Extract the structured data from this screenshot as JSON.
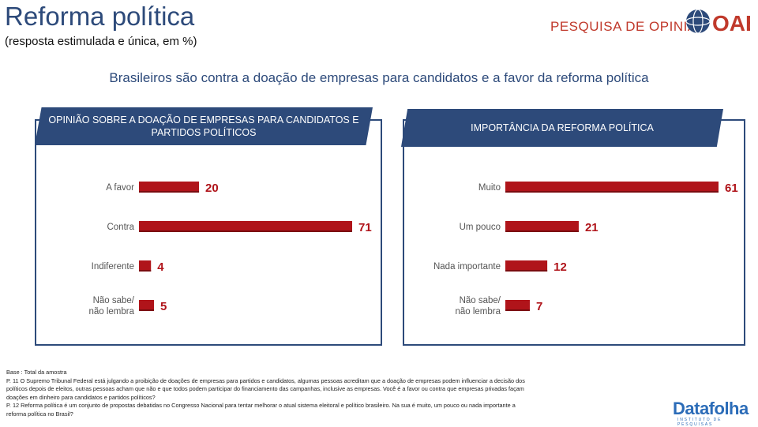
{
  "header": {
    "title": "Reforma política",
    "subtitle": "(resposta estimulada e única, em %)",
    "brand_text": "PESQUISA DE OPINIÃO",
    "brand_logo": "OAB"
  },
  "headline": "Brasileiros são contra a doação de empresas para candidatos e a favor da reforma política",
  "colors": {
    "accent": "#2d4a7a",
    "bar": "#b0141a",
    "label": "#555555"
  },
  "chart_data": [
    {
      "type": "bar",
      "orientation": "horizontal",
      "title": "OPINIÃO SOBRE A DOAÇÃO DE EMPRESAS PARA CANDIDATOS E PARTIDOS POLÍTICOS",
      "categories": [
        "A favor",
        "Contra",
        "Indiferente",
        "Não sabe/ não lembra"
      ],
      "values": [
        20,
        71,
        4,
        5
      ],
      "xlim": [
        0,
        71
      ]
    },
    {
      "type": "bar",
      "orientation": "horizontal",
      "title": "IMPORTÂNCIA DA REFORMA POLÍTICA",
      "categories": [
        "Muito",
        "Um pouco",
        "Nada importante",
        "Não sabe/ não lembra"
      ],
      "values": [
        61,
        21,
        12,
        7
      ],
      "xlim": [
        0,
        61
      ]
    }
  ],
  "footer": {
    "lines": [
      "Base : Total da amostra",
      "P. 11  O Supremo Tribunal Federal está julgando a proibição de doações de empresas para partidos e candidatos, algumas pessoas acreditam que a doação de empresas podem influenciar a decisão dos",
      "políticos depois de eleitos, outras pessoas acham que não e que todos podem participar do financiamento das campanhas, inclusive as empresas.  Você é a favor ou contra que empresas privadas façam",
      "doações em dinheiro para candidatos e partidos políticos?",
      "P. 12  Reforma política é um conjunto de propostas debatidas no Congresso Nacional para tentar melhorar o atual sistema eleitoral e político brasileiro. Na sua é muito, um pouco ou nada importante a",
      "reforma política no Brasil?"
    ],
    "logo": "Datafolha",
    "logo_sub": "INSTITUTO DE PESQUISAS"
  }
}
